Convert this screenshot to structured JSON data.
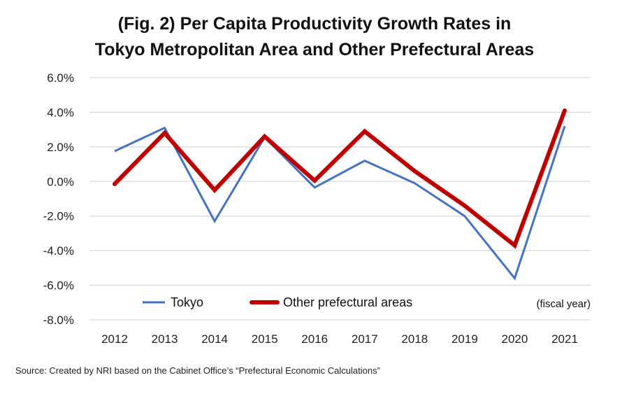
{
  "title_lines": [
    "(Fig. 2) Per Capita Productivity Growth Rates in",
    "Tokyo Metropolitan Area and Other Prefectural Areas"
  ],
  "source": "Source: Created by NRI based on the Cabinet Office’s “Prefectural Economic Calculations”",
  "chart_data": {
    "type": "line",
    "title": "(Fig. 2) Per Capita Productivity Growth Rates in Tokyo Metropolitan Area and Other Prefectural Areas",
    "xlabel": "(fiscal year)",
    "ylabel": "",
    "categories": [
      "2012",
      "2013",
      "2014",
      "2015",
      "2016",
      "2017",
      "2018",
      "2019",
      "2020",
      "2021"
    ],
    "ylim": [
      -8.0,
      6.0
    ],
    "yticks": [
      6.0,
      4.0,
      2.0,
      0.0,
      -2.0,
      -4.0,
      -6.0,
      -8.0
    ],
    "ytick_labels": [
      "6.0%",
      "4.0%",
      "2.0%",
      "0.0%",
      "-2.0%",
      "-4.0%",
      "-6.0%",
      "-8.0%"
    ],
    "grid": true,
    "legend_position": "bottom-inside",
    "series": [
      {
        "name": "Tokyo",
        "color": "#4472C4",
        "values": [
          1.75,
          3.1,
          -2.3,
          2.55,
          -0.35,
          1.2,
          -0.1,
          -2.0,
          -5.6,
          3.2
        ]
      },
      {
        "name": "Other prefectural areas",
        "color": "#C00000",
        "values": [
          -0.15,
          2.8,
          -0.5,
          2.6,
          0.05,
          2.9,
          0.6,
          -1.4,
          -3.7,
          4.1
        ]
      }
    ]
  }
}
